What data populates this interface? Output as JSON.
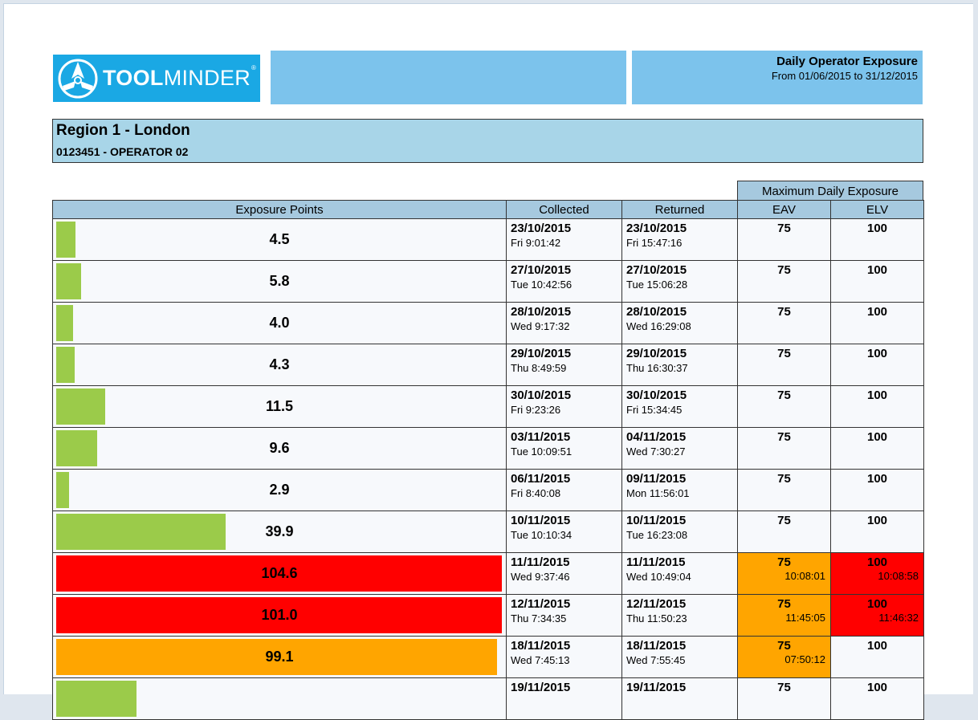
{
  "header": {
    "logo_text_bold": "TOOL",
    "logo_text_regular": "MINDER",
    "logo_reg_mark": "®",
    "report_title": "Daily Operator Exposure",
    "date_range": "From 01/06/2015 to 31/12/2015"
  },
  "region": {
    "name": "Region 1 - London",
    "operator": "0123451 - OPERATOR 02"
  },
  "table": {
    "group_header": "Maximum Daily Exposure",
    "columns": [
      "Exposure Points",
      "Collected",
      "Returned",
      "EAV",
      "ELV"
    ],
    "rows": [
      {
        "points": "4.5",
        "fraction": 0.043,
        "bar_color": "#9bcb4a",
        "collected_date": "23/10/2015",
        "collected_time": "Fri  9:01:42",
        "returned_date": "23/10/2015",
        "returned_time": "Fri  15:47:16",
        "eav": "75",
        "eav_time": "",
        "eav_bg": "",
        "elv": "100",
        "elv_time": "",
        "elv_bg": ""
      },
      {
        "points": "5.8",
        "fraction": 0.055,
        "bar_color": "#9bcb4a",
        "collected_date": "27/10/2015",
        "collected_time": "Tue  10:42:56",
        "returned_date": "27/10/2015",
        "returned_time": "Tue  15:06:28",
        "eav": "75",
        "eav_time": "",
        "eav_bg": "",
        "elv": "100",
        "elv_time": "",
        "elv_bg": ""
      },
      {
        "points": "4.0",
        "fraction": 0.038,
        "bar_color": "#9bcb4a",
        "collected_date": "28/10/2015",
        "collected_time": "Wed  9:17:32",
        "returned_date": "28/10/2015",
        "returned_time": "Wed  16:29:08",
        "eav": "75",
        "eav_time": "",
        "eav_bg": "",
        "elv": "100",
        "elv_time": "",
        "elv_bg": ""
      },
      {
        "points": "4.3",
        "fraction": 0.041,
        "bar_color": "#9bcb4a",
        "collected_date": "29/10/2015",
        "collected_time": "Thu  8:49:59",
        "returned_date": "29/10/2015",
        "returned_time": "Thu  16:30:37",
        "eav": "75",
        "eav_time": "",
        "eav_bg": "",
        "elv": "100",
        "elv_time": "",
        "elv_bg": ""
      },
      {
        "points": "11.5",
        "fraction": 0.11,
        "bar_color": "#9bcb4a",
        "collected_date": "30/10/2015",
        "collected_time": "Fri  9:23:26",
        "returned_date": "30/10/2015",
        "returned_time": "Fri  15:34:45",
        "eav": "75",
        "eav_time": "",
        "eav_bg": "",
        "elv": "100",
        "elv_time": "",
        "elv_bg": ""
      },
      {
        "points": "9.6",
        "fraction": 0.092,
        "bar_color": "#9bcb4a",
        "collected_date": "03/11/2015",
        "collected_time": "Tue  10:09:51",
        "returned_date": "04/11/2015",
        "returned_time": "Wed  7:30:27",
        "eav": "75",
        "eav_time": "",
        "eav_bg": "",
        "elv": "100",
        "elv_time": "",
        "elv_bg": ""
      },
      {
        "points": "2.9",
        "fraction": 0.028,
        "bar_color": "#9bcb4a",
        "collected_date": "06/11/2015",
        "collected_time": "Fri  8:40:08",
        "returned_date": "09/11/2015",
        "returned_time": "Mon  11:56:01",
        "eav": "75",
        "eav_time": "",
        "eav_bg": "",
        "elv": "100",
        "elv_time": "",
        "elv_bg": ""
      },
      {
        "points": "39.9",
        "fraction": 0.38,
        "bar_color": "#9bcb4a",
        "collected_date": "10/11/2015",
        "collected_time": "Tue  10:10:34",
        "returned_date": "10/11/2015",
        "returned_time": "Tue  16:23:08",
        "eav": "75",
        "eav_time": "",
        "eav_bg": "",
        "elv": "100",
        "elv_time": "",
        "elv_bg": ""
      },
      {
        "points": "104.6",
        "fraction": 1.0,
        "bar_color": "#ff0000",
        "collected_date": "11/11/2015",
        "collected_time": "Wed  9:37:46",
        "returned_date": "11/11/2015",
        "returned_time": "Wed  10:49:04",
        "eav": "75",
        "eav_time": "10:08:01",
        "eav_bg": "#ffa500",
        "elv": "100",
        "elv_time": "10:08:58",
        "elv_bg": "#ff0000"
      },
      {
        "points": "101.0",
        "fraction": 1.0,
        "bar_color": "#ff0000",
        "collected_date": "12/11/2015",
        "collected_time": "Thu  7:34:35",
        "returned_date": "12/11/2015",
        "returned_time": "Thu  11:50:23",
        "eav": "75",
        "eav_time": "11:45:05",
        "eav_bg": "#ffa500",
        "elv": "100",
        "elv_time": "11:46:32",
        "elv_bg": "#ff0000"
      },
      {
        "points": "99.1",
        "fraction": 0.99,
        "bar_color": "#ffa500",
        "collected_date": "18/11/2015",
        "collected_time": "Wed  7:45:13",
        "returned_date": "18/11/2015",
        "returned_time": "Wed  7:55:45",
        "eav": "75",
        "eav_time": "07:50:12",
        "eav_bg": "#ffa500",
        "elv": "100",
        "elv_time": "",
        "elv_bg": ""
      },
      {
        "points": "",
        "fraction": 0.18,
        "bar_color": "#9bcb4a",
        "collected_date": "19/11/2015",
        "collected_time": "",
        "returned_date": "19/11/2015",
        "returned_time": "",
        "eav": "75",
        "eav_time": "",
        "eav_bg": "",
        "elv": "100",
        "elv_time": "",
        "elv_bg": ""
      }
    ]
  }
}
